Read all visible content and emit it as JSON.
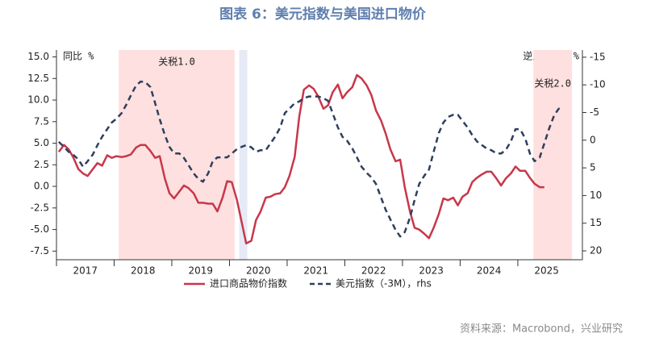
{
  "chart_data": {
    "type": "line",
    "title": "图表 6：美元指数与美国进口物价",
    "source": "资料来源：Macrobond，兴业研究",
    "left_axis_label": "同比 %",
    "right_axis_label": "逆序 同比 %",
    "x": [
      2017.04,
      2017.13,
      2017.21,
      2017.29,
      2017.38,
      2017.46,
      2017.54,
      2017.63,
      2017.71,
      2017.79,
      2017.88,
      2017.96,
      2018.04,
      2018.13,
      2018.21,
      2018.29,
      2018.38,
      2018.46,
      2018.54,
      2018.63,
      2018.71,
      2018.79,
      2018.88,
      2018.96,
      2019.04,
      2019.13,
      2019.21,
      2019.29,
      2019.38,
      2019.46,
      2019.54,
      2019.63,
      2019.71,
      2019.79,
      2019.88,
      2019.96,
      2020.04,
      2020.13,
      2020.21,
      2020.29,
      2020.38,
      2020.46,
      2020.54,
      2020.63,
      2020.71,
      2020.79,
      2020.88,
      2020.96,
      2021.04,
      2021.13,
      2021.21,
      2021.29,
      2021.38,
      2021.46,
      2021.54,
      2021.63,
      2021.71,
      2021.79,
      2021.88,
      2021.96,
      2022.04,
      2022.13,
      2022.21,
      2022.29,
      2022.38,
      2022.46,
      2022.54,
      2022.63,
      2022.71,
      2022.79,
      2022.88,
      2022.96,
      2023.04,
      2023.13,
      2023.21,
      2023.29,
      2023.38,
      2023.46,
      2023.54,
      2023.63,
      2023.71,
      2023.79,
      2023.88,
      2023.96,
      2024.04,
      2024.13,
      2024.21,
      2024.29,
      2024.38,
      2024.46,
      2024.54,
      2024.63,
      2024.71,
      2024.79,
      2024.88,
      2024.96,
      2025.04,
      2025.13,
      2025.21,
      2025.29,
      2025.38,
      2025.46,
      2025.54,
      2025.63,
      2025.71,
      2025.79
    ],
    "series": [
      {
        "name": "进口商品物价指数",
        "color": "#c8374a",
        "dashed": false,
        "values": [
          4.0,
          4.8,
          4.3,
          3.4,
          2.0,
          1.5,
          1.2,
          2.0,
          2.7,
          2.4,
          3.6,
          3.3,
          3.5,
          3.4,
          3.5,
          3.7,
          4.5,
          4.8,
          4.8,
          4.1,
          3.3,
          3.5,
          0.9,
          -0.8,
          -1.4,
          -0.6,
          0.1,
          -0.2,
          -0.8,
          -1.9,
          -1.9,
          -2.0,
          -2.0,
          -2.9,
          -1.3,
          0.6,
          0.5,
          -1.6,
          -4.1,
          -6.6,
          -6.3,
          -3.9,
          -2.9,
          -1.3,
          -1.2,
          -0.9,
          -0.8,
          -0.1,
          1.2,
          3.4,
          8.1,
          11.2,
          11.7,
          11.3,
          10.4,
          9.0,
          9.4,
          10.9,
          11.8,
          10.2,
          10.9,
          11.5,
          12.9,
          12.5,
          11.7,
          10.6,
          8.8,
          7.6,
          6.1,
          4.3,
          2.9,
          3.1,
          -0.1,
          -2.9,
          -4.8,
          -5.0,
          -5.5,
          -6.0,
          -4.8,
          -3.2,
          -1.4,
          -1.6,
          -1.3,
          -2.2,
          -1.2,
          -0.8,
          0.5,
          1.0,
          1.4,
          1.7,
          1.7,
          0.9,
          0.1,
          0.9,
          1.5,
          2.3,
          1.8,
          1.8,
          1.0,
          0.3,
          -0.1,
          -0.1,
          null,
          null,
          null,
          null
        ]
      },
      {
        "name": "美元指数（-3M），rhs",
        "color": "#2f3f5e",
        "dashed": true,
        "axis": "y2",
        "values": [
          0.3,
          1.2,
          2.1,
          2.6,
          3.5,
          4.8,
          3.8,
          2.6,
          0.9,
          -0.6,
          -2.0,
          -3.2,
          -3.9,
          -4.9,
          -6.4,
          -8.1,
          -9.9,
          -10.6,
          -10.5,
          -9.6,
          -6.7,
          -3.8,
          -0.9,
          1.2,
          2.4,
          2.4,
          3.2,
          4.5,
          6.0,
          7.0,
          7.5,
          6.0,
          3.8,
          3.1,
          3.1,
          3.1,
          2.4,
          1.6,
          1.2,
          0.9,
          1.3,
          2.1,
          1.8,
          1.8,
          0.6,
          -0.6,
          -2.3,
          -4.9,
          -5.7,
          -6.7,
          -7.0,
          -7.6,
          -7.9,
          -7.9,
          -7.9,
          -7.6,
          -7.1,
          -4.9,
          -2.3,
          -0.6,
          0.1,
          1.5,
          3.1,
          4.8,
          5.9,
          6.7,
          7.9,
          10.4,
          12.6,
          14.3,
          16.2,
          17.4,
          16.6,
          14.0,
          10.8,
          7.9,
          6.4,
          5.3,
          2.1,
          -1.3,
          -3.2,
          -4.2,
          -4.6,
          -4.6,
          -3.5,
          -2.3,
          -0.9,
          0.2,
          0.9,
          1.5,
          1.8,
          2.4,
          2.4,
          1.8,
          0.2,
          -2.0,
          -2.0,
          -0.3,
          2.4,
          3.8,
          3.1,
          0.6,
          -2.0,
          -4.5,
          -5.7,
          -5.7
        ]
      }
    ],
    "xlim": [
      2017,
      2026.12
    ],
    "xticks": [
      {
        "value": 2017.5,
        "label": "2017"
      },
      {
        "value": 2018.5,
        "label": "2018"
      },
      {
        "value": 2019.5,
        "label": "2019"
      },
      {
        "value": 2020.5,
        "label": "2020"
      },
      {
        "value": 2021.5,
        "label": "2021"
      },
      {
        "value": 2022.5,
        "label": "2022"
      },
      {
        "value": 2023.5,
        "label": "2023"
      },
      {
        "value": 2024.5,
        "label": "2024"
      },
      {
        "value": 2025.5,
        "label": "2025"
      }
    ],
    "ylim": [
      -8.5,
      15.8
    ],
    "yticks": [
      {
        "value": 15,
        "label": "15.0"
      },
      12.5,
      {
        "value": 10,
        "label": "10.0"
      },
      7.5,
      {
        "value": 5,
        "label": "5.0"
      },
      2.5,
      {
        "value": 0,
        "label": "0.0"
      },
      -2.5,
      {
        "value": -5,
        "label": "-5.0"
      },
      -7.5
    ],
    "y2lim": [
      21.6,
      -16.3
    ],
    "y2ticks": [
      -15,
      -10,
      -5,
      0,
      5,
      10,
      15,
      20
    ],
    "shaded_regions": [
      {
        "start": 2018.08,
        "end": 2020.09,
        "color": "#fde0df",
        "label": "关税1.0"
      },
      {
        "start": 2020.17,
        "end": 2020.31,
        "color": "#e6eaf6"
      },
      {
        "start": 2025.27,
        "end": 2025.94,
        "color": "#fde0df",
        "label": "关税2.0"
      }
    ]
  }
}
